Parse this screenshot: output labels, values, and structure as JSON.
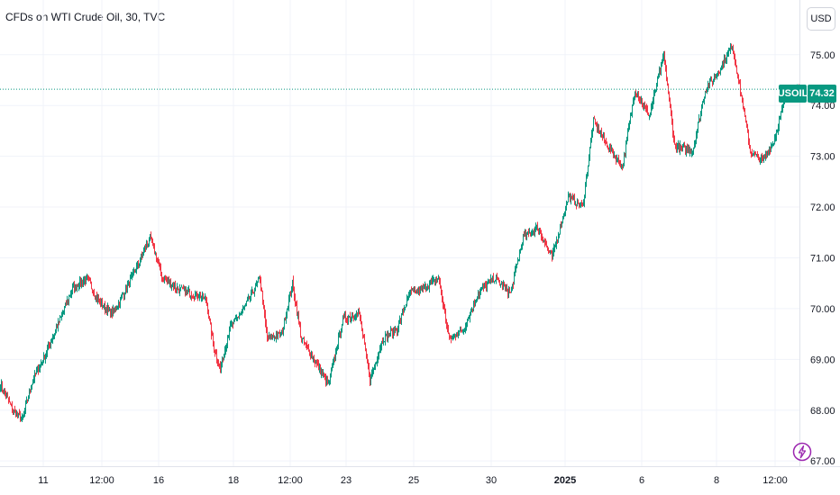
{
  "chart_title": "CFDs on WTI Crude Oil, 30, TVC",
  "currency_button": "USD",
  "last_price_symbol": "USOIL",
  "last_price": "74.32",
  "colors": {
    "up": "#089981",
    "down": "#f23645",
    "grid": "#f0f3fa",
    "axis_text": "#131722",
    "price_line": "#089981",
    "bolt": "#9c27b0"
  },
  "chart_data": {
    "type": "candlestick",
    "title": "CFDs on WTI Crude Oil, 30, TVC",
    "symbol": "USOIL",
    "interval": "30",
    "source": "TVC",
    "currency": "USD",
    "ylim": [
      66.95,
      75.9
    ],
    "y_ticks": [
      67,
      68,
      69,
      70,
      71,
      72,
      73,
      74,
      75
    ],
    "y_tick_labels": [
      "67.00",
      "68.00",
      "69.00",
      "70.00",
      "71.00",
      "72.00",
      "73.00",
      "74.00",
      "75.00"
    ],
    "x_tick_labels": [
      "11",
      "12:00",
      "16",
      "18",
      "12:00",
      "23",
      "25",
      "30",
      "2025",
      "6",
      "8",
      "12:00"
    ],
    "last_price": 74.32,
    "anchors": [
      {
        "i": 0,
        "p": 68.5
      },
      {
        "i": 14,
        "p": 68.0
      },
      {
        "i": 24,
        "p": 67.8
      },
      {
        "i": 36,
        "p": 68.6
      },
      {
        "i": 50,
        "p": 69.1
      },
      {
        "i": 64,
        "p": 69.7
      },
      {
        "i": 80,
        "p": 70.4
      },
      {
        "i": 96,
        "p": 70.6
      },
      {
        "i": 110,
        "p": 70.1
      },
      {
        "i": 124,
        "p": 69.9
      },
      {
        "i": 140,
        "p": 70.4
      },
      {
        "i": 156,
        "p": 71.0
      },
      {
        "i": 166,
        "p": 71.4
      },
      {
        "i": 180,
        "p": 70.6
      },
      {
        "i": 196,
        "p": 70.4
      },
      {
        "i": 212,
        "p": 70.3
      },
      {
        "i": 228,
        "p": 70.2
      },
      {
        "i": 236,
        "p": 69.3
      },
      {
        "i": 244,
        "p": 68.8
      },
      {
        "i": 254,
        "p": 69.6
      },
      {
        "i": 270,
        "p": 70.0
      },
      {
        "i": 288,
        "p": 70.6
      },
      {
        "i": 296,
        "p": 69.4
      },
      {
        "i": 312,
        "p": 69.5
      },
      {
        "i": 324,
        "p": 70.5
      },
      {
        "i": 334,
        "p": 69.4
      },
      {
        "i": 348,
        "p": 69.0
      },
      {
        "i": 364,
        "p": 68.5
      },
      {
        "i": 380,
        "p": 69.8
      },
      {
        "i": 398,
        "p": 69.9
      },
      {
        "i": 410,
        "p": 68.6
      },
      {
        "i": 424,
        "p": 69.4
      },
      {
        "i": 440,
        "p": 69.6
      },
      {
        "i": 454,
        "p": 70.3
      },
      {
        "i": 470,
        "p": 70.4
      },
      {
        "i": 486,
        "p": 70.6
      },
      {
        "i": 498,
        "p": 69.4
      },
      {
        "i": 514,
        "p": 69.6
      },
      {
        "i": 530,
        "p": 70.3
      },
      {
        "i": 548,
        "p": 70.6
      },
      {
        "i": 566,
        "p": 70.3
      },
      {
        "i": 580,
        "p": 71.4
      },
      {
        "i": 596,
        "p": 71.6
      },
      {
        "i": 612,
        "p": 71.0
      },
      {
        "i": 630,
        "p": 72.2
      },
      {
        "i": 646,
        "p": 72.0
      },
      {
        "i": 658,
        "p": 73.7
      },
      {
        "i": 674,
        "p": 73.2
      },
      {
        "i": 690,
        "p": 72.8
      },
      {
        "i": 704,
        "p": 74.3
      },
      {
        "i": 720,
        "p": 73.8
      },
      {
        "i": 736,
        "p": 75.0
      },
      {
        "i": 748,
        "p": 73.2
      },
      {
        "i": 768,
        "p": 73.1
      },
      {
        "i": 782,
        "p": 74.3
      },
      {
        "i": 798,
        "p": 74.7
      },
      {
        "i": 812,
        "p": 75.2
      },
      {
        "i": 824,
        "p": 74.0
      },
      {
        "i": 832,
        "p": 73.1
      },
      {
        "i": 846,
        "p": 72.9
      },
      {
        "i": 858,
        "p": 73.3
      },
      {
        "i": 872,
        "p": 74.2
      },
      {
        "i": 886,
        "p": 74.32
      }
    ]
  }
}
